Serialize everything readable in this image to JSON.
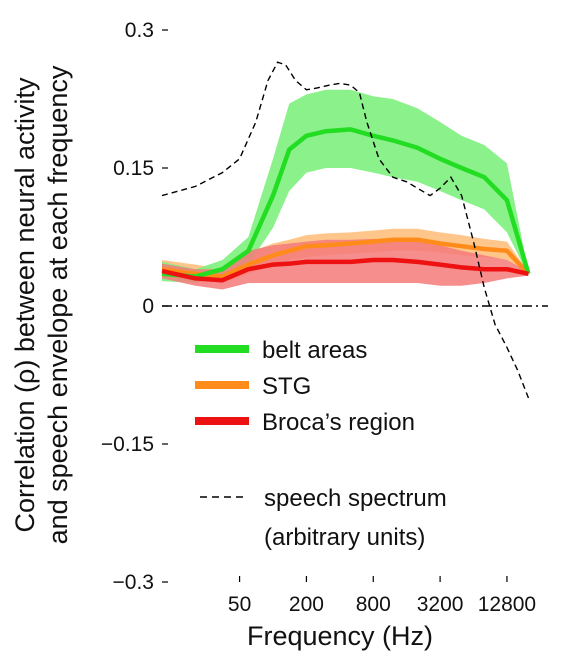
{
  "chart_data": {
    "type": "line",
    "xlabel": "Frequency (Hz)",
    "ylabel_line1": "Correlation (ρ) between neural activity",
    "ylabel_line2": "and speech envelope at each frequency",
    "x_scale": "log",
    "xlim": [
      10,
      30000
    ],
    "ylim": [
      -0.3,
      0.3
    ],
    "x_ticks": [
      50,
      200,
      800,
      3200,
      12800
    ],
    "x_tick_labels": [
      "50",
      "200",
      "800",
      "3200",
      "12800"
    ],
    "y_ticks": [
      -0.3,
      -0.15,
      0,
      0.15,
      0.3
    ],
    "y_tick_labels": [
      "−0.3",
      "−0.15",
      "0",
      "0.15",
      "0.3"
    ],
    "zero_line": {
      "y": 0,
      "style": "dash-dot"
    },
    "grid": false,
    "legend_position": "lower-center",
    "series": [
      {
        "name": "belt areas",
        "color": "#22dd22",
        "band_color": "#7ef07e",
        "x": [
          10,
          20,
          35,
          60,
          100,
          140,
          200,
          300,
          500,
          800,
          1200,
          2000,
          3200,
          5000,
          8000,
          12800,
          20000
        ],
        "mean": [
          0.035,
          0.032,
          0.04,
          0.06,
          0.12,
          0.17,
          0.185,
          0.19,
          0.192,
          0.185,
          0.18,
          0.172,
          0.16,
          0.15,
          0.14,
          0.115,
          0.035
        ],
        "lower": [
          0.027,
          0.025,
          0.03,
          0.045,
          0.085,
          0.125,
          0.145,
          0.15,
          0.15,
          0.145,
          0.14,
          0.135,
          0.125,
          0.115,
          0.105,
          0.08,
          0.033
        ],
        "upper": [
          0.048,
          0.04,
          0.05,
          0.075,
          0.16,
          0.22,
          0.23,
          0.235,
          0.235,
          0.228,
          0.225,
          0.215,
          0.2,
          0.185,
          0.175,
          0.155,
          0.037
        ]
      },
      {
        "name": "STG",
        "color": "#ff8c1a",
        "band_color": "#ffc080",
        "x": [
          10,
          20,
          35,
          60,
          100,
          140,
          200,
          300,
          500,
          800,
          1200,
          2000,
          3200,
          5000,
          8000,
          12800,
          20000
        ],
        "mean": [
          0.04,
          0.035,
          0.032,
          0.045,
          0.055,
          0.06,
          0.065,
          0.066,
          0.068,
          0.07,
          0.072,
          0.072,
          0.068,
          0.065,
          0.062,
          0.06,
          0.035
        ],
        "lower": [
          0.033,
          0.028,
          0.025,
          0.035,
          0.045,
          0.05,
          0.053,
          0.055,
          0.057,
          0.058,
          0.06,
          0.06,
          0.058,
          0.055,
          0.053,
          0.05,
          0.033
        ],
        "upper": [
          0.05,
          0.045,
          0.04,
          0.058,
          0.068,
          0.072,
          0.077,
          0.079,
          0.08,
          0.082,
          0.084,
          0.084,
          0.08,
          0.077,
          0.073,
          0.07,
          0.037
        ]
      },
      {
        "name": "Broca’s region",
        "color": "#ee1111",
        "band_color": "#f47a7a",
        "x": [
          10,
          20,
          35,
          60,
          100,
          140,
          200,
          300,
          500,
          800,
          1200,
          2000,
          3200,
          5000,
          8000,
          12800,
          20000
        ],
        "mean": [
          0.038,
          0.03,
          0.028,
          0.04,
          0.045,
          0.046,
          0.048,
          0.048,
          0.048,
          0.05,
          0.05,
          0.048,
          0.045,
          0.042,
          0.04,
          0.04,
          0.035
        ],
        "lower": [
          0.03,
          0.022,
          0.018,
          0.025,
          0.025,
          0.025,
          0.025,
          0.025,
          0.025,
          0.025,
          0.025,
          0.025,
          0.022,
          0.022,
          0.025,
          0.03,
          0.033
        ],
        "upper": [
          0.046,
          0.04,
          0.04,
          0.06,
          0.066,
          0.068,
          0.07,
          0.072,
          0.072,
          0.073,
          0.073,
          0.07,
          0.066,
          0.06,
          0.055,
          0.05,
          0.037
        ]
      }
    ],
    "reference_line": {
      "name_line1": "speech spectrum",
      "name_line2": "(arbitrary units)",
      "style": "dashed",
      "color": "#000000",
      "x": [
        10,
        20,
        35,
        50,
        70,
        90,
        110,
        130,
        160,
        200,
        250,
        320,
        400,
        500,
        600,
        700,
        900,
        1200,
        1600,
        2000,
        2600,
        3200,
        4000,
        5000,
        6400,
        8000,
        10000,
        12800,
        16000,
        20000
      ],
      "y": [
        0.12,
        0.13,
        0.145,
        0.16,
        0.2,
        0.245,
        0.265,
        0.262,
        0.245,
        0.235,
        0.237,
        0.24,
        0.242,
        0.24,
        0.232,
        0.2,
        0.16,
        0.14,
        0.135,
        0.128,
        0.12,
        0.128,
        0.14,
        0.12,
        0.07,
        0.02,
        -0.02,
        -0.045,
        -0.07,
        -0.1
      ]
    }
  }
}
